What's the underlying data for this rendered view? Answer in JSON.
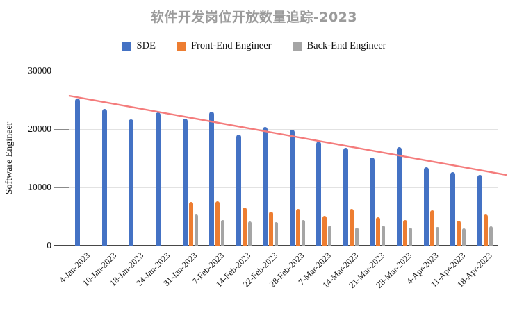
{
  "title": "软件开发岗位开放数量追踪-2023",
  "legend": [
    {
      "label": "SDE",
      "color": "#4472C4"
    },
    {
      "label": "Front-End Engineer",
      "color": "#ED7D31"
    },
    {
      "label": "Back-End Engineer",
      "color": "#A5A5A5"
    }
  ],
  "colors": {
    "sde": "#4472C4",
    "front_end": "#ED7D31",
    "back_end": "#A5A5A5",
    "trendline": "#F47C7C",
    "title_text": "#9B9B9B",
    "gridline": "#E2E2E2",
    "axis": "#474747"
  },
  "chart_data": {
    "type": "bar",
    "title": "软件开发岗位开放数量追踪-2023",
    "xlabel": "",
    "ylabel": "Software Engineer",
    "ylim": [
      0,
      30000
    ],
    "y_ticks": [
      0,
      10000,
      20000,
      30000
    ],
    "grid": true,
    "legend_position": "top",
    "categories": [
      "4-Jan-2023",
      "10-Jan-2023",
      "18-Jan-2023",
      "24-Jan-2023",
      "31-Jan-2023",
      "7-Feb-2023",
      "14-Feb-2023",
      "22-Feb-2023",
      "28-Feb-2023",
      "7-Mar-2023",
      "14-Mar-2023",
      "21-Mar-2023",
      "28-Mar-2023",
      "4-Apr-2023",
      "11-Apr-2023",
      "18-Apr-2023"
    ],
    "series": [
      {
        "name": "SDE",
        "color": "#4472C4",
        "values": [
          25200,
          23400,
          21700,
          22900,
          21800,
          23000,
          19000,
          20300,
          19900,
          17800,
          16800,
          15100,
          16900,
          13400,
          12600,
          12200
        ]
      },
      {
        "name": "Front-End Engineer",
        "color": "#ED7D31",
        "values": [
          0,
          0,
          0,
          0,
          7500,
          7600,
          6500,
          5800,
          6300,
          5100,
          6300,
          4900,
          4400,
          6100,
          4300,
          5400
        ]
      },
      {
        "name": "Back-End Engineer",
        "color": "#A5A5A5",
        "values": [
          0,
          0,
          0,
          0,
          5400,
          4400,
          4200,
          4100,
          4400,
          3400,
          3100,
          3400,
          3100,
          3200,
          3000,
          3300
        ]
      }
    ],
    "trendline": {
      "type": "linear",
      "for_series": "SDE",
      "color": "#F47C7C",
      "start_value": 25700,
      "end_value": 12150
    }
  }
}
